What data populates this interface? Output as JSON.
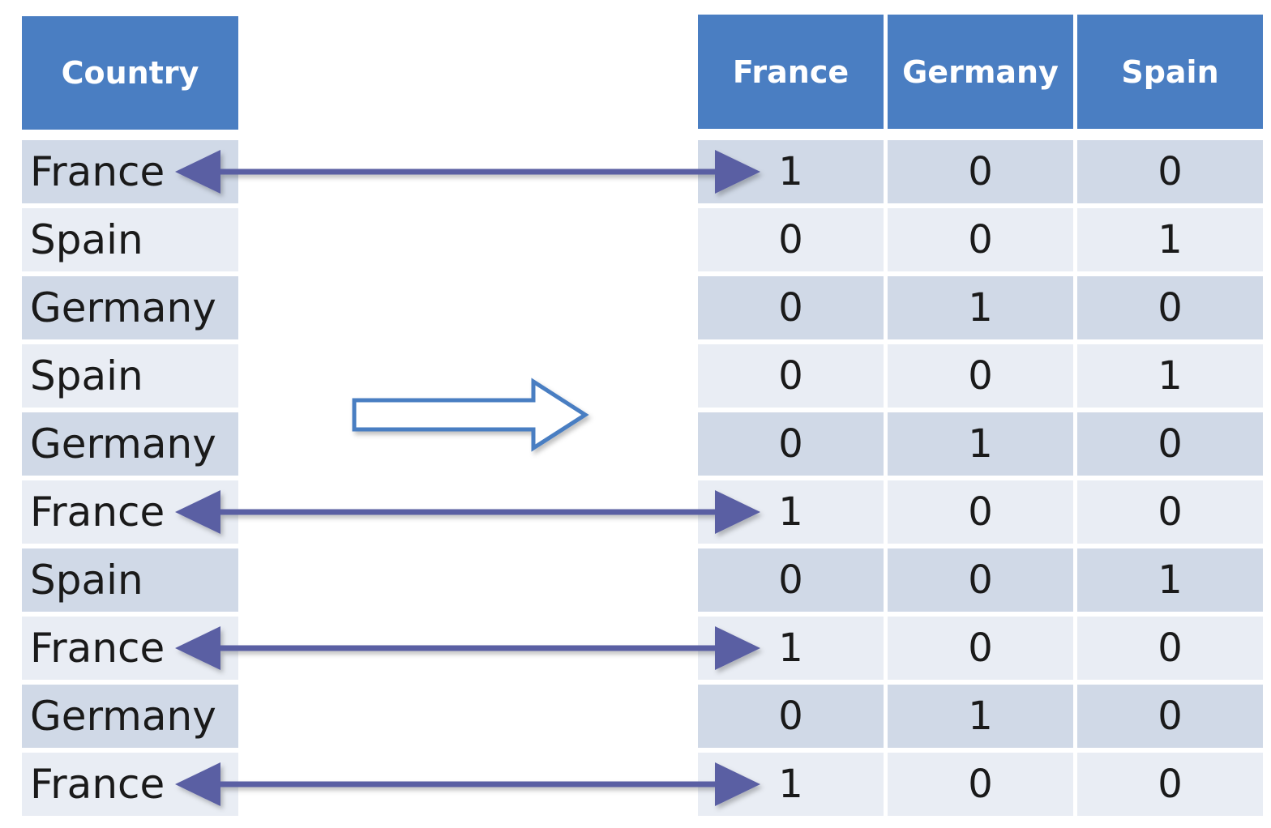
{
  "left_table": {
    "header": "Country",
    "rows": [
      "France",
      "Spain",
      "Germany",
      "Spain",
      "Germany",
      "France",
      "Spain",
      "France",
      "Germany",
      "France"
    ]
  },
  "right_table": {
    "headers": [
      "France",
      "Germany",
      "Spain"
    ],
    "rows": [
      [
        "1",
        "0",
        "0"
      ],
      [
        "0",
        "0",
        "1"
      ],
      [
        "0",
        "1",
        "0"
      ],
      [
        "0",
        "0",
        "1"
      ],
      [
        "0",
        "1",
        "0"
      ],
      [
        "1",
        "0",
        "0"
      ],
      [
        "0",
        "0",
        "1"
      ],
      [
        "1",
        "0",
        "0"
      ],
      [
        "0",
        "1",
        "0"
      ],
      [
        "1",
        "0",
        "0"
      ]
    ]
  },
  "linked_rows": [
    0,
    5,
    7,
    9
  ],
  "colors": {
    "header_bg": "#4a7ec2",
    "row_dark": "#d0d9e7",
    "row_light": "#e9edf4",
    "link_arrow": "#5a5fa3",
    "transform_arrow": "#4a7ec2"
  }
}
